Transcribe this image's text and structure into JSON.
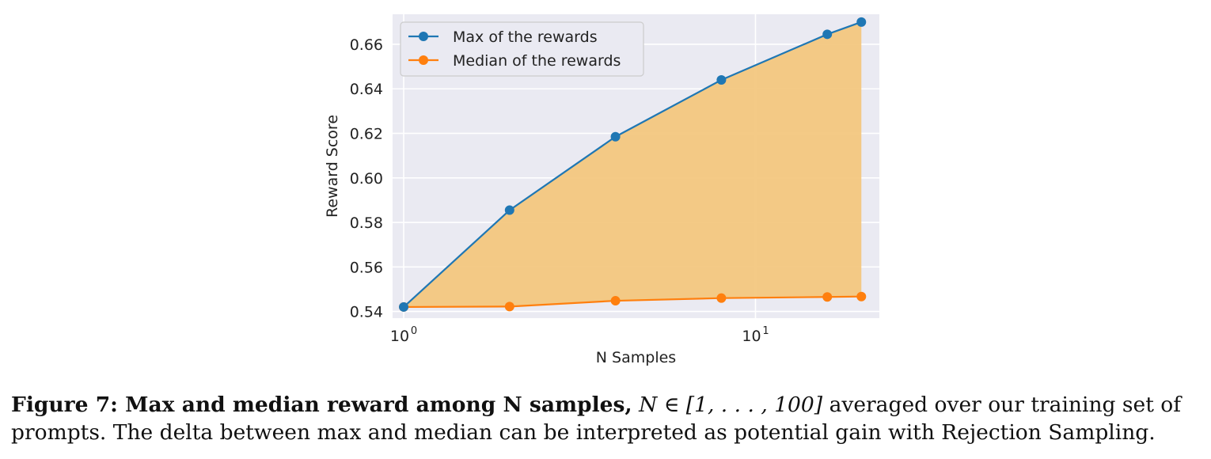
{
  "chart_data": {
    "type": "line",
    "xscale": "log",
    "x": [
      1,
      2,
      4,
      8,
      16,
      20
    ],
    "xlim": [
      0.93,
      22.5
    ],
    "ylim": [
      0.537,
      0.6735
    ],
    "yticks": [
      0.54,
      0.56,
      0.58,
      0.6,
      0.62,
      0.64,
      0.66
    ],
    "ytick_labels": [
      "0.54",
      "0.56",
      "0.58",
      "0.60",
      "0.62",
      "0.64",
      "0.66"
    ],
    "xtick_labels": [
      {
        "base": "10",
        "exp": "0",
        "value": 1
      },
      {
        "base": "10",
        "exp": "1",
        "value": 10
      }
    ],
    "xlabel": "N Samples",
    "ylabel": "Reward Score",
    "grid": true,
    "legend_position": "top-left",
    "fill_between": {
      "color": "#f3c67c",
      "between": [
        "Max of the rewards",
        "Median of the rewards"
      ]
    },
    "series": [
      {
        "name": "Max of the rewards",
        "color": "#1f77b4",
        "values": [
          0.542,
          0.5855,
          0.6185,
          0.644,
          0.6645,
          0.67
        ]
      },
      {
        "name": "Median of the rewards",
        "color": "#ff7f0e",
        "values": [
          0.542,
          0.5422,
          0.5448,
          0.546,
          0.5465,
          0.5467
        ]
      }
    ]
  },
  "caption": {
    "label": "Figure 7: Max and median reward among N samples,",
    "math": "N ∈ [1, . . . , 100]",
    "line1_rest": "averaged over our training set of",
    "line2": "prompts. The delta between max and median can be interpreted as potential gain with Rejection Sampling."
  }
}
